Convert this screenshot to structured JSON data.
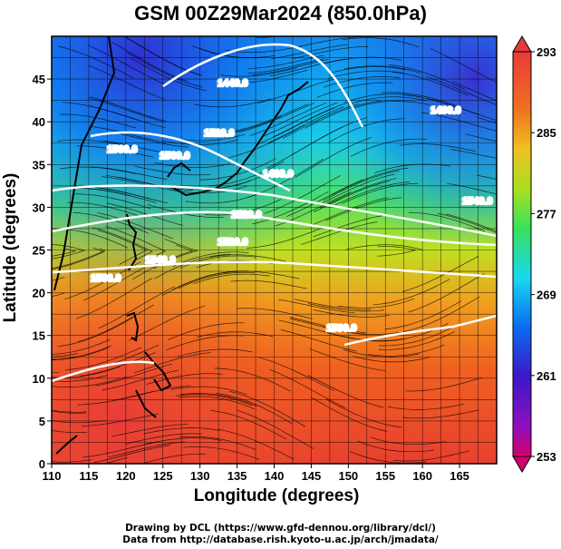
{
  "title": "GSM 00Z29Mar2024 (850.0hPa)",
  "xlabel": "Longitude (degrees)",
  "ylabel": "Latitude  (degrees)",
  "credits": [
    "Drawing by DCL (https://www.gfd-dennou.org/library/dcl/)",
    "Data from http://database.rish.kyoto-u.ac.jp/arch/jmadata/"
  ],
  "map": {
    "lon_range": [
      110,
      170
    ],
    "lat_range": [
      0,
      50
    ],
    "x_ticks": [
      "110",
      "115",
      "120",
      "125",
      "130",
      "135",
      "140",
      "145",
      "150",
      "155",
      "160",
      "165"
    ],
    "y_ticks": [
      "0",
      "5",
      "10",
      "15",
      "20",
      "25",
      "30",
      "35",
      "40",
      "45"
    ],
    "contour_labels": [
      "1560.0",
      "1520.0",
      "1560.0",
      "1440.0",
      "1480.0",
      "1520.0",
      "1400.0",
      "1540.0",
      "1520.0",
      "1540.0",
      "1500.0",
      "1500.0"
    ]
  },
  "colorbar": {
    "ticks": [
      "293",
      "285",
      "277",
      "269",
      "261",
      "253"
    ],
    "colors": [
      "#d4006e",
      "#3a18c8",
      "#0a6cf0",
      "#18d8f0",
      "#36e060",
      "#a8e020",
      "#f0a020",
      "#f06020",
      "#e83a3a"
    ]
  }
}
